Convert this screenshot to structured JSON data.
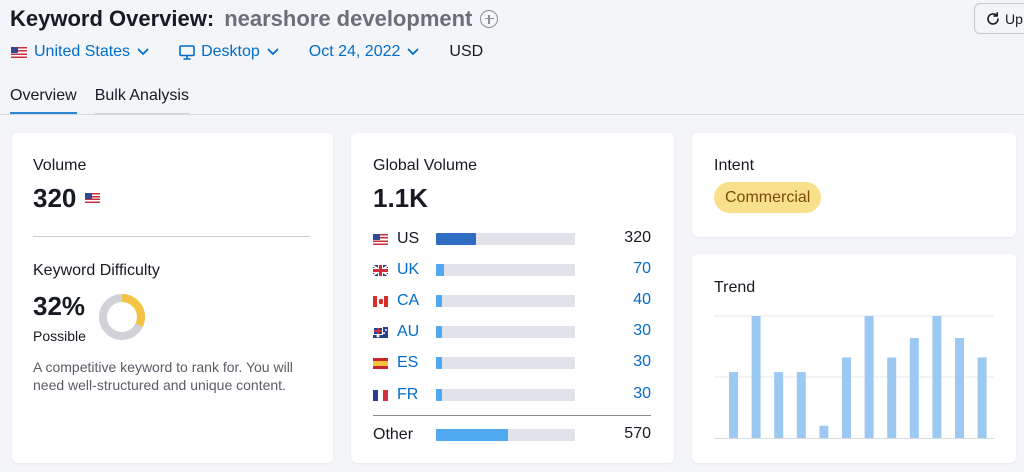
{
  "header": {
    "title": "Keyword Overview:",
    "keyword": "nearshore development",
    "update_label": "Up",
    "filters": {
      "country": "United States",
      "device": "Desktop",
      "date": "Oct 24, 2022",
      "currency": "USD"
    },
    "tabs": [
      {
        "label": "Overview",
        "active": true
      },
      {
        "label": "Bulk Analysis",
        "active": false
      }
    ]
  },
  "volume_card": {
    "label": "Volume",
    "value": "320",
    "kd_label": "Keyword Difficulty",
    "kd_value": "32%",
    "kd_rating": "Possible",
    "kd_percent": 32,
    "description": "A competitive keyword to rank for. You will need well-structured and unique content."
  },
  "global_card": {
    "label": "Global Volume",
    "value": "1.1K",
    "rows": [
      {
        "code": "US",
        "value": "320",
        "share": 0.29,
        "link": false
      },
      {
        "code": "UK",
        "value": "70",
        "share": 0.06,
        "link": true
      },
      {
        "code": "CA",
        "value": "40",
        "share": 0.035,
        "link": true
      },
      {
        "code": "AU",
        "value": "30",
        "share": 0.027,
        "link": true
      },
      {
        "code": "ES",
        "value": "30",
        "share": 0.027,
        "link": true
      },
      {
        "code": "FR",
        "value": "30",
        "share": 0.027,
        "link": true
      }
    ],
    "other": {
      "label": "Other",
      "value": "570",
      "share": 0.52
    }
  },
  "intent_card": {
    "label": "Intent",
    "badge": "Commercial"
  },
  "trend_card": {
    "label": "Trend",
    "values": [
      0.54,
      1.0,
      0.54,
      0.54,
      0.1,
      0.66,
      1.0,
      0.66,
      0.82,
      1.0,
      0.82,
      0.66
    ]
  },
  "colors": {
    "link": "#006dca",
    "bar_primary": "#2e6dc2",
    "bar_secondary": "#4fa8f0",
    "trend_bar": "#9bc9f2",
    "intent_bg": "#f9e08a",
    "kd_fill": "#f3c443",
    "kd_track": "#d0d2d8"
  }
}
